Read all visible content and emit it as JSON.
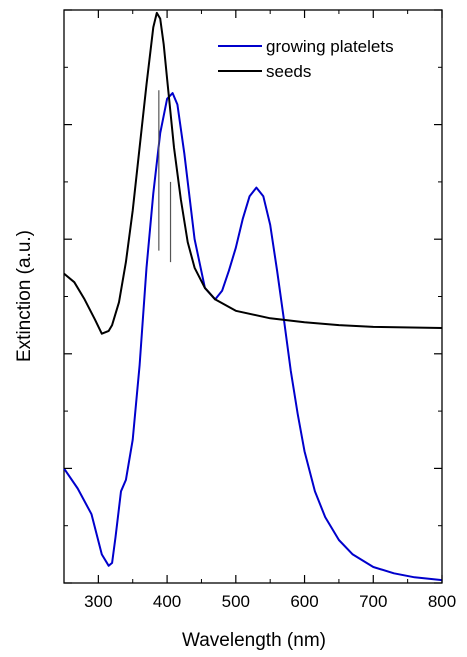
{
  "chart_data": {
    "type": "line",
    "title": "",
    "xlabel": "Wavelength (nm)",
    "ylabel": "Extinction (a.u.)",
    "xlim": [
      250,
      800
    ],
    "ylim": [
      0,
      10
    ],
    "x_ticks": [
      300,
      400,
      500,
      600,
      700,
      800
    ],
    "x_tick_labels": [
      "300",
      "400",
      "500",
      "600",
      "700",
      "800"
    ],
    "y_tick_labels_shown": false,
    "grid": false,
    "legend_position": "top-right",
    "series": [
      {
        "name": "growing platelets",
        "color": "#0000cc",
        "x": [
          250,
          270,
          290,
          305,
          315,
          320,
          325,
          333,
          340,
          350,
          360,
          370,
          380,
          390,
          400,
          408,
          415,
          425,
          440,
          455,
          470,
          480,
          490,
          500,
          510,
          520,
          530,
          540,
          550,
          560,
          570,
          580,
          590,
          600,
          615,
          630,
          650,
          670,
          700,
          730,
          760,
          800
        ],
        "y": [
          2.0,
          1.65,
          1.2,
          0.5,
          0.3,
          0.35,
          0.8,
          1.6,
          1.8,
          2.5,
          3.8,
          5.5,
          6.8,
          7.85,
          8.45,
          8.55,
          8.35,
          7.5,
          6.0,
          5.15,
          4.95,
          5.1,
          5.45,
          5.85,
          6.35,
          6.75,
          6.9,
          6.75,
          6.25,
          5.45,
          4.6,
          3.7,
          2.95,
          2.3,
          1.6,
          1.15,
          0.75,
          0.5,
          0.28,
          0.17,
          0.1,
          0.05
        ]
      },
      {
        "name": "seeds",
        "color": "#000000",
        "x": [
          250,
          265,
          280,
          295,
          305,
          315,
          320,
          330,
          340,
          350,
          360,
          370,
          380,
          385,
          390,
          395,
          400,
          410,
          420,
          430,
          440,
          455,
          470,
          500,
          550,
          600,
          650,
          700,
          800
        ],
        "y": [
          5.4,
          5.25,
          4.95,
          4.6,
          4.35,
          4.4,
          4.5,
          4.9,
          5.6,
          6.5,
          7.6,
          8.7,
          9.7,
          9.95,
          9.85,
          9.4,
          8.8,
          7.6,
          6.7,
          5.95,
          5.5,
          5.15,
          4.95,
          4.75,
          4.62,
          4.55,
          4.5,
          4.47,
          4.45
        ]
      }
    ],
    "annotations": [
      {
        "type": "vertical-line",
        "x": 388,
        "y_from": 5.8,
        "y_to": 8.6
      },
      {
        "type": "vertical-line",
        "x": 405,
        "y_from": 5.6,
        "y_to": 7.0
      }
    ]
  }
}
